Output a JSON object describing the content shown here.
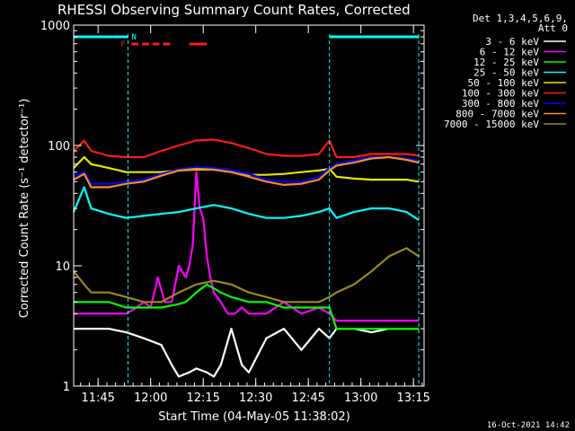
{
  "chart_data": {
    "type": "line",
    "title": "RHESSI Observing Summary Count Rates, Corrected",
    "xlabel": "Start Time (04-May-05 11:38:02)",
    "ylabel": "Corrected Count Rate (s⁻¹ detector⁻¹)",
    "footer": "16-Oct-2021 14:42",
    "x_unit": "minutes after 11:38:02",
    "xlim": [
      0,
      100
    ],
    "ylim": [
      1,
      1000
    ],
    "y_scale": "log",
    "x_ticks": [
      {
        "x": 6.97,
        "label": "11:45"
      },
      {
        "x": 21.97,
        "label": "12:00"
      },
      {
        "x": 36.97,
        "label": "12:15"
      },
      {
        "x": 51.97,
        "label": "12:30"
      },
      {
        "x": 66.97,
        "label": "12:45"
      },
      {
        "x": 81.97,
        "label": "13:00"
      },
      {
        "x": 96.97,
        "label": "13:15"
      }
    ],
    "y_ticks": [
      {
        "y": 1,
        "label": "1"
      },
      {
        "y": 10,
        "label": "10"
      },
      {
        "y": 100,
        "label": "100"
      },
      {
        "y": 1000,
        "label": "1000"
      }
    ],
    "legend": {
      "position": "right",
      "header": [
        "Det 1,3,4,5,6,9,",
        "Att 0"
      ],
      "entries": [
        {
          "label": "3 - 6 keV",
          "color": "#ffffff"
        },
        {
          "label": "6 - 12 keV",
          "color": "#ff00ff"
        },
        {
          "label": "12 - 25 keV",
          "color": "#00ff00"
        },
        {
          "label": "25 - 50 keV",
          "color": "#00ffff"
        },
        {
          "label": "50 - 100 keV",
          "color": "#e6e600"
        },
        {
          "label": "100 - 300 keV",
          "color": "#ff1a1a"
        },
        {
          "label": "300 - 800 keV",
          "color": "#0000ff"
        },
        {
          "label": "800 - 7000 keV",
          "color": "#ff8c1a"
        },
        {
          "label": "7000 - 15000 keV",
          "color": "#9a8a1a"
        }
      ]
    },
    "annotations": {
      "night_label": "N",
      "flag_label": "F",
      "night_color": "#00ffff",
      "flag_color": "#ff1a1a",
      "night_bars": [
        [
          0,
          15.5
        ],
        [
          73,
          98.5
        ]
      ],
      "flag_segments": [
        [
          16.5,
          18.5
        ],
        [
          19.5,
          21.5
        ],
        [
          22.5,
          24.5
        ],
        [
          25.5,
          27.5
        ],
        [
          33,
          38
        ]
      ],
      "vertical_markers": [
        15.5,
        73,
        98.5
      ]
    },
    "series": [
      {
        "name": "3 - 6 keV",
        "color": "#ffffff",
        "x": [
          0,
          5,
          10,
          15,
          20,
          25,
          28,
          30,
          33,
          35,
          38,
          40,
          42,
          45,
          48,
          50,
          55,
          60,
          65,
          70,
          73,
          75,
          80,
          85,
          90,
          95,
          98.5
        ],
        "y": [
          3,
          3,
          3,
          2.8,
          2.5,
          2.2,
          1.5,
          1.2,
          1.3,
          1.4,
          1.3,
          1.2,
          1.5,
          3,
          1.5,
          1.3,
          2.5,
          3,
          2,
          3,
          2.5,
          3,
          3,
          2.8,
          3,
          3,
          3
        ]
      },
      {
        "name": "6 - 12 keV",
        "color": "#ff00ff",
        "x": [
          0,
          5,
          10,
          15,
          18,
          20,
          22,
          24,
          26,
          28,
          30,
          32,
          33,
          34,
          35,
          36,
          37,
          38,
          39,
          40,
          42,
          44,
          46,
          48,
          50,
          55,
          60,
          65,
          70,
          73,
          75,
          80,
          85,
          90,
          95,
          98.5
        ],
        "y": [
          4,
          4,
          4,
          4,
          4.5,
          5,
          4.5,
          8,
          5,
          5,
          10,
          8,
          10,
          15,
          60,
          30,
          25,
          12,
          8,
          6,
          5,
          4,
          4,
          4.5,
          4,
          4,
          5,
          4,
          4.5,
          4,
          3.5,
          3.5,
          3.5,
          3.5,
          3.5,
          3.5
        ]
      },
      {
        "name": "12 - 25 keV",
        "color": "#00ff00",
        "x": [
          0,
          5,
          10,
          15,
          20,
          25,
          30,
          32,
          35,
          38,
          40,
          42,
          45,
          50,
          55,
          60,
          65,
          70,
          73,
          75,
          80,
          85,
          90,
          95,
          98.5
        ],
        "y": [
          5,
          5,
          5,
          4.5,
          4.5,
          4.5,
          4.8,
          5,
          6,
          7,
          6.5,
          6,
          5.5,
          5,
          5,
          4.5,
          4.5,
          4.5,
          4.5,
          3,
          3,
          3,
          3,
          3,
          3
        ]
      },
      {
        "name": "25 - 50 keV",
        "color": "#00ffff",
        "x": [
          0,
          3,
          5,
          10,
          15,
          20,
          25,
          30,
          35,
          40,
          45,
          50,
          55,
          60,
          65,
          70,
          73,
          75,
          80,
          85,
          90,
          95,
          98.5
        ],
        "y": [
          28,
          45,
          30,
          27,
          25,
          26,
          27,
          28,
          30,
          32,
          30,
          27,
          25,
          25,
          26,
          28,
          30,
          25,
          28,
          30,
          30,
          28,
          24
        ]
      },
      {
        "name": "50 - 100 keV",
        "color": "#e6e600",
        "x": [
          0,
          3,
          5,
          10,
          15,
          20,
          25,
          30,
          35,
          40,
          45,
          50,
          55,
          60,
          65,
          70,
          73,
          75,
          80,
          85,
          90,
          95,
          98.5
        ],
        "y": [
          65,
          80,
          70,
          65,
          60,
          60,
          60,
          62,
          63,
          63,
          60,
          57,
          57,
          58,
          60,
          62,
          64,
          55,
          53,
          52,
          52,
          52,
          50
        ]
      },
      {
        "name": "100 - 300 keV",
        "color": "#ff1a1a",
        "x": [
          0,
          3,
          5,
          10,
          15,
          20,
          25,
          30,
          35,
          40,
          45,
          50,
          55,
          60,
          65,
          70,
          73,
          75,
          80,
          85,
          90,
          95,
          98.5
        ],
        "y": [
          90,
          110,
          90,
          82,
          80,
          80,
          90,
          100,
          110,
          112,
          105,
          95,
          85,
          82,
          82,
          85,
          110,
          80,
          80,
          85,
          85,
          85,
          82
        ]
      },
      {
        "name": "300 - 800 keV",
        "color": "#0000ff",
        "x": [
          0,
          3,
          5,
          10,
          15,
          20,
          25,
          30,
          35,
          40,
          45,
          50,
          55,
          60,
          65,
          70,
          73,
          75,
          80,
          85,
          90,
          95,
          98.5
        ],
        "y": [
          55,
          60,
          48,
          48,
          50,
          52,
          58,
          63,
          66,
          65,
          62,
          58,
          52,
          50,
          50,
          55,
          65,
          70,
          75,
          80,
          80,
          78,
          75
        ]
      },
      {
        "name": "800 - 7000 keV",
        "color": "#ff8c1a",
        "x": [
          0,
          3,
          5,
          10,
          15,
          20,
          25,
          30,
          35,
          40,
          45,
          50,
          55,
          60,
          65,
          70,
          73,
          75,
          80,
          85,
          90,
          95,
          98.5
        ],
        "y": [
          52,
          58,
          45,
          45,
          48,
          50,
          56,
          62,
          64,
          63,
          60,
          55,
          50,
          47,
          48,
          52,
          62,
          68,
          72,
          78,
          80,
          76,
          72
        ]
      },
      {
        "name": "7000 - 15000 keV",
        "color": "#9a8a1a",
        "x": [
          0,
          3,
          5,
          10,
          15,
          20,
          25,
          30,
          35,
          40,
          45,
          50,
          55,
          60,
          65,
          70,
          73,
          75,
          80,
          85,
          90,
          95,
          98.5
        ],
        "y": [
          9,
          7,
          6,
          6,
          5.5,
          5,
          5,
          6,
          7,
          7.5,
          7,
          6,
          5.5,
          5,
          5,
          5,
          5.5,
          6,
          7,
          9,
          12,
          14,
          12
        ]
      }
    ]
  }
}
